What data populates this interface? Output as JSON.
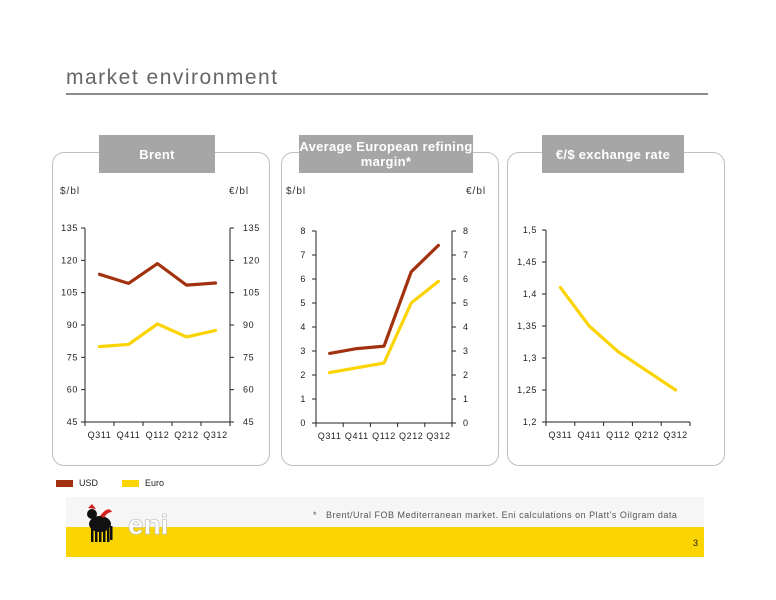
{
  "page": {
    "title": "market environment",
    "page_number": "3"
  },
  "footnote": {
    "mark": "*",
    "text": "Brent/Ural FOB Mediterranean market. Eni calculations on Platt's Oilgram data"
  },
  "logo": {
    "text": "eni"
  },
  "legend": [
    {
      "label": "USD",
      "color": "#a2320f"
    },
    {
      "label": "Euro",
      "color": "#fbd403"
    }
  ],
  "panels": [
    {
      "title": "Brent",
      "left_unit": "$/bl",
      "right_unit": "€/bl"
    },
    {
      "title": "Average European refining margin*",
      "left_unit": "$/bl",
      "right_unit": "€/bl"
    },
    {
      "title": "€/$ exchange rate",
      "left_unit": "",
      "right_unit": ""
    }
  ],
  "chart_data": [
    {
      "type": "line",
      "title": "Brent",
      "categories": [
        "Q311",
        "Q411",
        "Q112",
        "Q212",
        "Q312"
      ],
      "ylabel": "$/bl",
      "y2label": "€/bl",
      "ylim": [
        45,
        135
      ],
      "yticks": [
        "45",
        "60",
        "75",
        "90",
        "105",
        "120",
        "135"
      ],
      "y2ticks": [
        "45",
        "60",
        "75",
        "90",
        "105",
        "120",
        "135"
      ],
      "series": [
        {
          "name": "USD",
          "color": "#a2320f",
          "values": [
            113.5,
            109.3,
            118.5,
            108.5,
            109.5
          ]
        },
        {
          "name": "Euro",
          "color": "#fbd403",
          "values": [
            80,
            81,
            90.5,
            84.5,
            87.5
          ]
        }
      ]
    },
    {
      "type": "line",
      "title": "Average European refining margin*",
      "categories": [
        "Q311",
        "Q411",
        "Q112",
        "Q212",
        "Q312"
      ],
      "ylabel": "$/bl",
      "y2label": "€/bl",
      "ylim": [
        0,
        8
      ],
      "yticks": [
        "0",
        "1",
        "2",
        "3",
        "4",
        "5",
        "6",
        "7",
        "8"
      ],
      "y2ticks": [
        "0",
        "1",
        "2",
        "3",
        "4",
        "5",
        "6",
        "7",
        "8"
      ],
      "series": [
        {
          "name": "USD",
          "color": "#a2320f",
          "values": [
            2.9,
            3.1,
            3.2,
            6.3,
            7.4
          ]
        },
        {
          "name": "Euro",
          "color": "#fbd403",
          "values": [
            2.1,
            2.3,
            2.5,
            5.0,
            5.9
          ]
        }
      ]
    },
    {
      "type": "line",
      "title": "€/$ exchange rate",
      "categories": [
        "Q311",
        "Q411",
        "Q112",
        "Q212",
        "Q312"
      ],
      "ylim": [
        1.2,
        1.5
      ],
      "yticks": [
        "1,2",
        "1,25",
        "1,3",
        "1,35",
        "1,4",
        "1,45",
        "1,5"
      ],
      "series": [
        {
          "color": "#fbd403",
          "values": [
            1.41,
            1.35,
            1.31,
            1.28,
            1.25
          ]
        }
      ]
    }
  ]
}
